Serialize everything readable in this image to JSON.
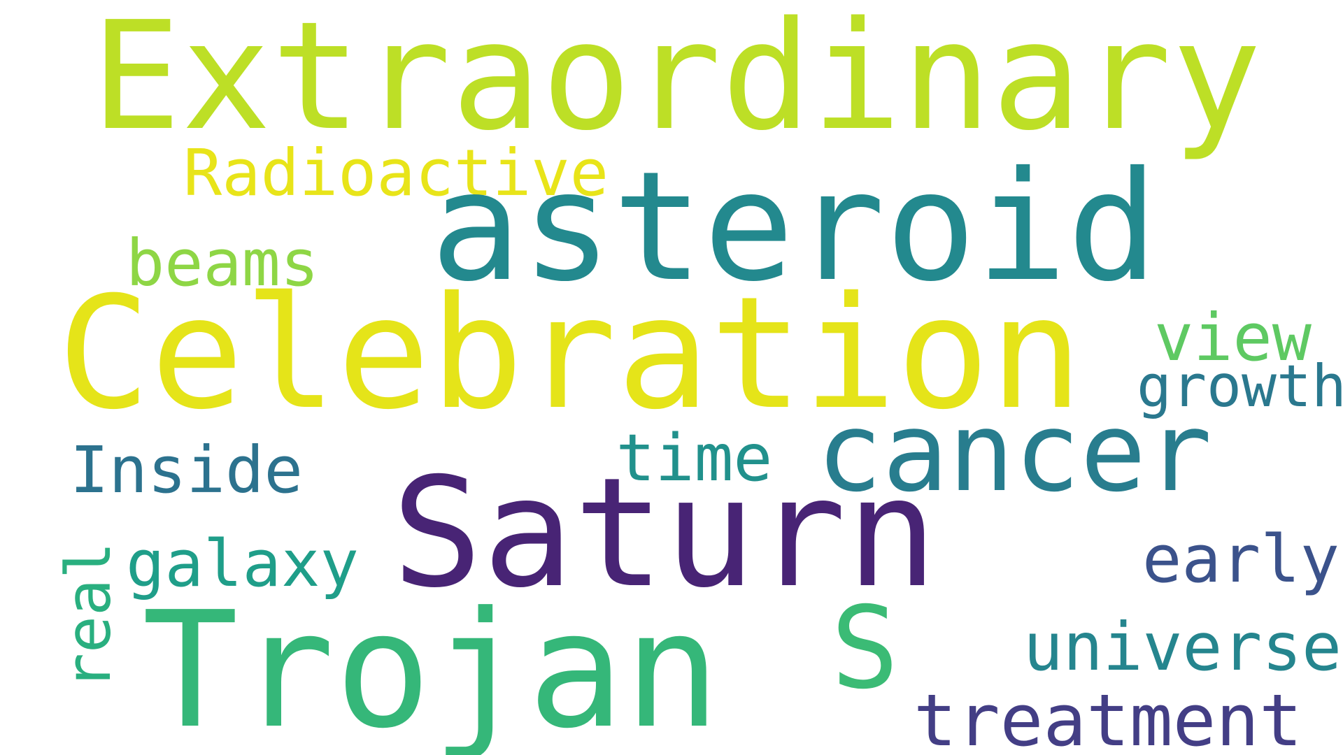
{
  "word_cloud": {
    "words": [
      {
        "id": "extraordinary",
        "text": "Extraordinary",
        "color": "#BDDF26",
        "orientation": "horizontal"
      },
      {
        "id": "radioactive",
        "text": "Radioactive",
        "color": "#E8E419",
        "orientation": "horizontal"
      },
      {
        "id": "asteroid",
        "text": "asteroid",
        "color": "#23898E",
        "orientation": "horizontal"
      },
      {
        "id": "beams",
        "text": "beams",
        "color": "#8ED645",
        "orientation": "horizontal"
      },
      {
        "id": "celebration",
        "text": "Celebration",
        "color": "#E5E419",
        "orientation": "horizontal"
      },
      {
        "id": "view",
        "text": "view",
        "color": "#5EC962",
        "orientation": "horizontal"
      },
      {
        "id": "growth",
        "text": "growth",
        "color": "#2A788E",
        "orientation": "horizontal"
      },
      {
        "id": "cancer",
        "text": "cancer",
        "color": "#287D8E",
        "orientation": "horizontal"
      },
      {
        "id": "time",
        "text": "time",
        "color": "#21918C",
        "orientation": "horizontal"
      },
      {
        "id": "inside",
        "text": "Inside",
        "color": "#2C728E",
        "orientation": "horizontal"
      },
      {
        "id": "saturn",
        "text": "Saturn",
        "color": "#482475",
        "orientation": "horizontal"
      },
      {
        "id": "galaxy",
        "text": "galaxy",
        "color": "#1F9E89",
        "orientation": "horizontal"
      },
      {
        "id": "real",
        "text": "real",
        "color": "#29AF7F",
        "orientation": "vertical"
      },
      {
        "id": "early",
        "text": "early",
        "color": "#3B528B",
        "orientation": "horizontal"
      },
      {
        "id": "trojan",
        "text": "Trojan",
        "color": "#35B779",
        "orientation": "horizontal"
      },
      {
        "id": "s",
        "text": "S",
        "color": "#3BBB75",
        "orientation": "horizontal"
      },
      {
        "id": "universe",
        "text": "universe",
        "color": "#25858E",
        "orientation": "horizontal"
      },
      {
        "id": "treatment",
        "text": "treatment",
        "color": "#433E85",
        "orientation": "horizontal"
      }
    ]
  }
}
